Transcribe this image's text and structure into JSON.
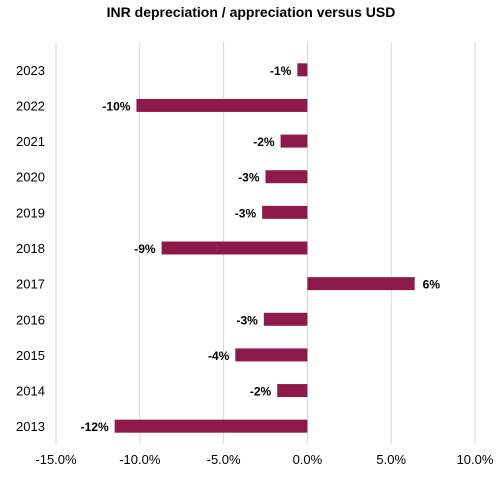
{
  "chart_data": {
    "type": "bar",
    "orientation": "horizontal",
    "title": "INR depreciation / appreciation versus USD",
    "xlabel": "",
    "ylabel": "",
    "categories": [
      "2023",
      "2022",
      "2021",
      "2020",
      "2019",
      "2018",
      "2017",
      "2016",
      "2015",
      "2014",
      "2013"
    ],
    "values": [
      -0.6,
      -10.2,
      -1.6,
      -2.5,
      -2.7,
      -8.7,
      6.4,
      -2.6,
      -4.3,
      -1.8,
      -11.5
    ],
    "data_labels": [
      "-1%",
      "-10%",
      "-2%",
      "-3%",
      "-3%",
      "-9%",
      "6%",
      "-3%",
      "-4%",
      "-2%",
      "-12%"
    ],
    "xlim": [
      -15,
      10
    ],
    "xticks": [
      -15,
      -10,
      -5,
      0,
      5,
      10
    ],
    "xtick_labels": [
      "-15.0%",
      "-10.0%",
      "-5.0%",
      "0.0%",
      "5.0%",
      "10.0%"
    ],
    "grid": "vertical",
    "legend": "none",
    "bar_color": "#8e1a4b",
    "grid_color": "#d9d9d9"
  }
}
